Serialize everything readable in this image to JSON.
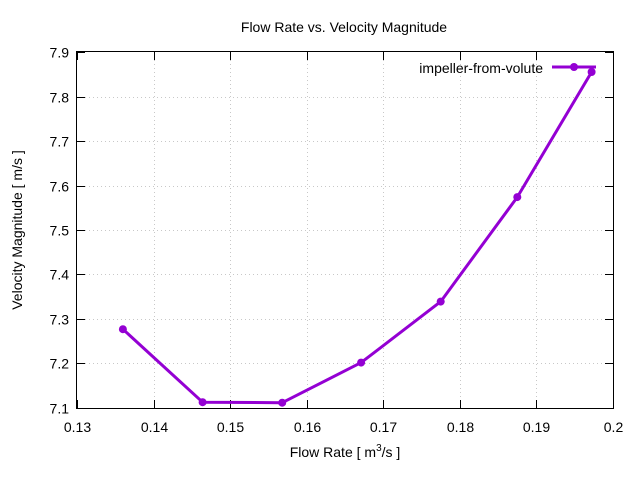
{
  "chart_data": {
    "type": "line",
    "title": "Flow Rate vs. Velocity Magnitude",
    "xlabel": {
      "prefix": "Flow Rate [ m",
      "superscript": "3",
      "suffix": "/s ]"
    },
    "ylabel": "Velocity Magnitude [ m/s ]",
    "xlim": [
      0.13,
      0.2
    ],
    "ylim": [
      7.1,
      7.9
    ],
    "xticks": [
      "0.13",
      "0.14",
      "0.15",
      "0.16",
      "0.17",
      "0.18",
      "0.19",
      "0.2"
    ],
    "yticks": [
      "7.1",
      "7.2",
      "7.3",
      "7.4",
      "7.5",
      "7.6",
      "7.7",
      "7.8",
      "7.9"
    ],
    "grid": true,
    "legend_position": "top-right",
    "series": [
      {
        "name": "impeller-from-volute",
        "color": "#9400d3",
        "marker": "circle",
        "points": [
          {
            "x": 0.136,
            "y": 7.277
          },
          {
            "x": 0.1464,
            "y": 7.113
          },
          {
            "x": 0.1568,
            "y": 7.112
          },
          {
            "x": 0.1671,
            "y": 7.202
          },
          {
            "x": 0.1775,
            "y": 7.339
          },
          {
            "x": 0.1875,
            "y": 7.574
          },
          {
            "x": 0.1972,
            "y": 7.855
          }
        ]
      }
    ]
  }
}
